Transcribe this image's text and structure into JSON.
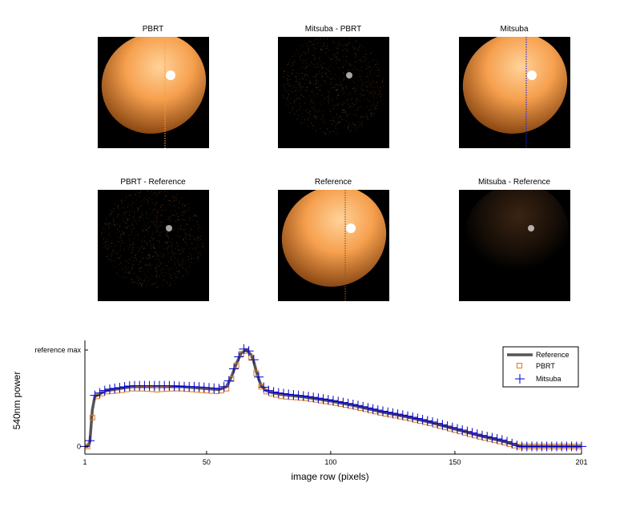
{
  "panels": [
    {
      "title": "PBRT",
      "kind": "sphere",
      "lineColor": "#ff9a3c"
    },
    {
      "title": "Mitsuba - PBRT",
      "kind": "noise"
    },
    {
      "title": "Mitsuba",
      "kind": "sphere",
      "lineColor": "#2a2ad8"
    },
    {
      "title": "PBRT - Reference",
      "kind": "noise"
    },
    {
      "title": "Reference",
      "kind": "sphere",
      "lineColor": "#8a5a2a"
    },
    {
      "title": "Mitsuba - Reference",
      "kind": "glow"
    }
  ],
  "colors": {
    "sphere_light": "#ffd29a",
    "sphere_mid": "#f6a04e",
    "sphere_dark": "#7a3a0a",
    "reference": "#555555",
    "pbrt": "#e07b1a",
    "mitsuba": "#0000cc"
  },
  "chart_data": {
    "type": "line",
    "xlabel": "image row (pixels)",
    "ylabel": "540nm power",
    "xlim": [
      1,
      201
    ],
    "ylim": [
      -0.08,
      1.1
    ],
    "x_ticks": [
      1,
      50,
      100,
      150,
      201
    ],
    "y_ticks": [
      {
        "value": 0,
        "label": "0"
      },
      {
        "value": 1,
        "label": "reference max"
      }
    ],
    "legend_position": "top-right",
    "series": [
      {
        "name": "Reference",
        "style": "line",
        "x": [
          1,
          2,
          3,
          4,
          5,
          6,
          8,
          10,
          15,
          20,
          25,
          30,
          35,
          40,
          45,
          50,
          55,
          58,
          60,
          62,
          64,
          66,
          68,
          69,
          70,
          71,
          72,
          74,
          76,
          80,
          90,
          100,
          110,
          120,
          130,
          140,
          150,
          160,
          170,
          174,
          176,
          180,
          190,
          201
        ],
        "y": [
          0,
          0,
          0.05,
          0.38,
          0.52,
          0.53,
          0.56,
          0.58,
          0.6,
          0.62,
          0.62,
          0.62,
          0.62,
          0.62,
          0.61,
          0.6,
          0.59,
          0.62,
          0.72,
          0.86,
          0.97,
          1.0,
          0.95,
          0.88,
          0.78,
          0.7,
          0.63,
          0.58,
          0.56,
          0.54,
          0.51,
          0.47,
          0.42,
          0.36,
          0.31,
          0.25,
          0.18,
          0.11,
          0.05,
          0.02,
          0.0,
          0.0,
          0.0,
          0.0
        ]
      },
      {
        "name": "PBRT",
        "style": "square",
        "x": [
          1,
          2,
          3,
          4,
          5,
          6,
          8,
          10,
          15,
          20,
          25,
          30,
          35,
          40,
          45,
          50,
          55,
          58,
          60,
          62,
          64,
          65,
          66,
          67,
          68,
          69,
          70,
          71,
          72,
          74,
          76,
          80,
          90,
          100,
          110,
          120,
          130,
          140,
          150,
          160,
          170,
          174,
          176,
          180,
          190,
          201
        ],
        "y": [
          0,
          0,
          0.1,
          0.3,
          0.5,
          0.52,
          0.55,
          0.57,
          0.58,
          0.6,
          0.6,
          0.59,
          0.6,
          0.6,
          0.59,
          0.58,
          0.57,
          0.6,
          0.7,
          0.84,
          0.96,
          1.02,
          0.99,
          1.02,
          0.92,
          0.86,
          0.76,
          0.68,
          0.62,
          0.57,
          0.55,
          0.52,
          0.5,
          0.46,
          0.41,
          0.35,
          0.3,
          0.24,
          0.17,
          0.1,
          0.04,
          0.01,
          0.0,
          0.0,
          0.0,
          0.0
        ]
      },
      {
        "name": "Mitsuba",
        "style": "plus",
        "x": [
          1,
          2,
          3,
          4,
          5,
          6,
          8,
          10,
          15,
          20,
          25,
          30,
          35,
          40,
          45,
          50,
          55,
          58,
          60,
          62,
          64,
          65,
          66,
          67,
          68,
          69,
          70,
          71,
          72,
          74,
          76,
          80,
          90,
          100,
          110,
          120,
          130,
          140,
          150,
          160,
          170,
          174,
          176,
          180,
          190,
          201
        ],
        "y": [
          0,
          0,
          0.06,
          0.4,
          0.53,
          0.54,
          0.57,
          0.59,
          0.61,
          0.63,
          0.63,
          0.63,
          0.63,
          0.62,
          0.62,
          0.61,
          0.6,
          0.63,
          0.73,
          0.88,
          0.98,
          1.01,
          1.0,
          0.99,
          0.97,
          0.9,
          0.8,
          0.72,
          0.64,
          0.59,
          0.57,
          0.55,
          0.52,
          0.48,
          0.43,
          0.37,
          0.32,
          0.26,
          0.19,
          0.12,
          0.06,
          0.02,
          0.0,
          0.0,
          0.0,
          0.0
        ]
      }
    ]
  }
}
